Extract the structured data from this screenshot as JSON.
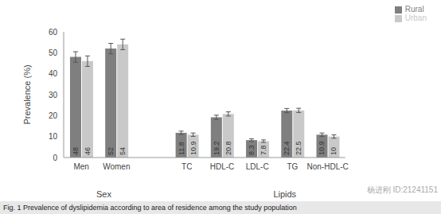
{
  "chart_data": {
    "type": "bar",
    "caption": "Fig. 1 Prevalence of dyslipidemia according to area of residence among the study population",
    "ylabel": "Prevalence (%)",
    "categories": [
      "Men",
      "Women",
      null,
      "TC",
      "HDL-C",
      "LDL-C",
      "TG",
      "Non-HDL-C"
    ],
    "x_groups": [
      {
        "label": "Sex",
        "categories": [
          "Men",
          "Women"
        ]
      },
      {
        "label": "Lipids",
        "categories": [
          "TC",
          "HDL-C",
          "LDL-C",
          "TG",
          "Non-HDL-C"
        ]
      }
    ],
    "series": [
      {
        "name": "Rural",
        "color": "#7f7f7f",
        "values": [
          48,
          52,
          null,
          11.8,
          19.2,
          8.3,
          22.4,
          10.9
        ],
        "errors": [
          2.5,
          2.5,
          null,
          0.8,
          1,
          0.6,
          1,
          0.8
        ]
      },
      {
        "name": "Urban",
        "color": "#c9c9c9",
        "values": [
          46,
          54,
          null,
          10.9,
          20.8,
          7.8,
          22.5,
          10
        ],
        "errors": [
          2.5,
          2.5,
          null,
          0.8,
          1,
          0.6,
          1,
          0.8
        ]
      }
    ],
    "ylim": [
      0,
      60
    ],
    "yticks": [
      0,
      10,
      20,
      30,
      40,
      50,
      60
    ],
    "grid": false,
    "legend": "top-right",
    "data_labels": true,
    "annotations": [
      "杨进刚 ID:21241151"
    ]
  }
}
